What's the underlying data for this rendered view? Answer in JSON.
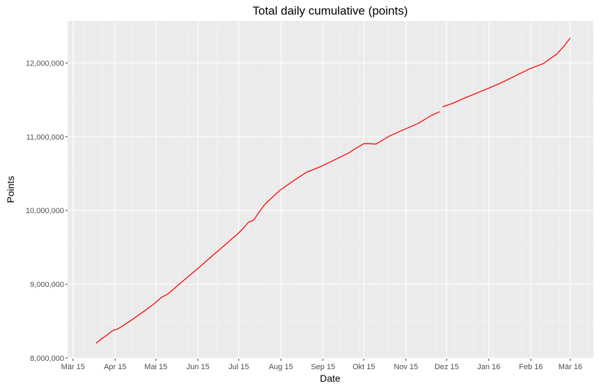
{
  "chart_data": {
    "type": "line",
    "title": "Total daily cumulative (points)",
    "xlabel": "Date",
    "ylabel": "Points",
    "x_ticks": [
      "2015-03-01",
      "2015-04-01",
      "2015-05-01",
      "2015-06-01",
      "2015-07-01",
      "2015-08-01",
      "2015-09-01",
      "2015-10-01",
      "2015-11-01",
      "2015-12-01",
      "2016-01-01",
      "2016-02-01",
      "2016-03-01"
    ],
    "x_tick_labels": [
      "Mär 15",
      "Apr 15",
      "Mai 15",
      "Jun 15",
      "Jul 15",
      "Aug 15",
      "Sep 15",
      "Okt 15",
      "Nov 15",
      "Dez 15",
      "Jan 16",
      "Feb 16",
      "Mär 16"
    ],
    "y_ticks": [
      8000000,
      9000000,
      10000000,
      11000000,
      12000000
    ],
    "y_tick_labels": [
      "8,000,000",
      "9,000,000",
      "10,000,000",
      "11,000,000",
      "12,000,000"
    ],
    "xlim": [
      "2015-02-25",
      "2016-03-18"
    ],
    "ylim": [
      7990000,
      12570000
    ],
    "grid": true,
    "line_color": "#ff0000",
    "panel_background": "#ebebeb",
    "series": [
      {
        "segments": [
          {
            "x": [
              "2015-03-18",
              "2015-03-22",
              "2015-03-26",
              "2015-03-30",
              "2015-04-03",
              "2015-04-07",
              "2015-04-15",
              "2015-04-22",
              "2015-04-30",
              "2015-05-05",
              "2015-05-10",
              "2015-05-20",
              "2015-05-31",
              "2015-06-10",
              "2015-06-20",
              "2015-06-30",
              "2015-07-05",
              "2015-07-08",
              "2015-07-12",
              "2015-07-15",
              "2015-07-20",
              "2015-07-31",
              "2015-08-10",
              "2015-08-20",
              "2015-08-31",
              "2015-09-10",
              "2015-09-20",
              "2015-09-24",
              "2015-10-01",
              "2015-10-05",
              "2015-10-10",
              "2015-10-20",
              "2015-10-31",
              "2015-11-10",
              "2015-11-20",
              "2015-11-26"
            ],
            "y": [
              8200000,
              8260000,
              8310000,
              8370000,
              8395000,
              8440000,
              8540000,
              8630000,
              8740000,
              8820000,
              8870000,
              9030000,
              9200000,
              9360000,
              9520000,
              9680000,
              9770000,
              9840000,
              9870000,
              9950000,
              10080000,
              10270000,
              10400000,
              10520000,
              10600000,
              10690000,
              10780000,
              10830000,
              10905000,
              10905000,
              10900000,
              11010000,
              11100000,
              11180000,
              11290000,
              11340000
            ]
          },
          {
            "x": [
              "2015-11-28",
              "2015-12-05",
              "2015-12-15",
              "2015-12-31",
              "2016-01-10",
              "2016-01-20",
              "2016-01-31",
              "2016-02-10",
              "2016-02-20",
              "2016-02-25",
              "2016-03-01"
            ],
            "y": [
              11405000,
              11450000,
              11530000,
              11650000,
              11730000,
              11820000,
              11920000,
              11990000,
              12120000,
              12220000,
              12340000
            ]
          }
        ]
      }
    ]
  }
}
